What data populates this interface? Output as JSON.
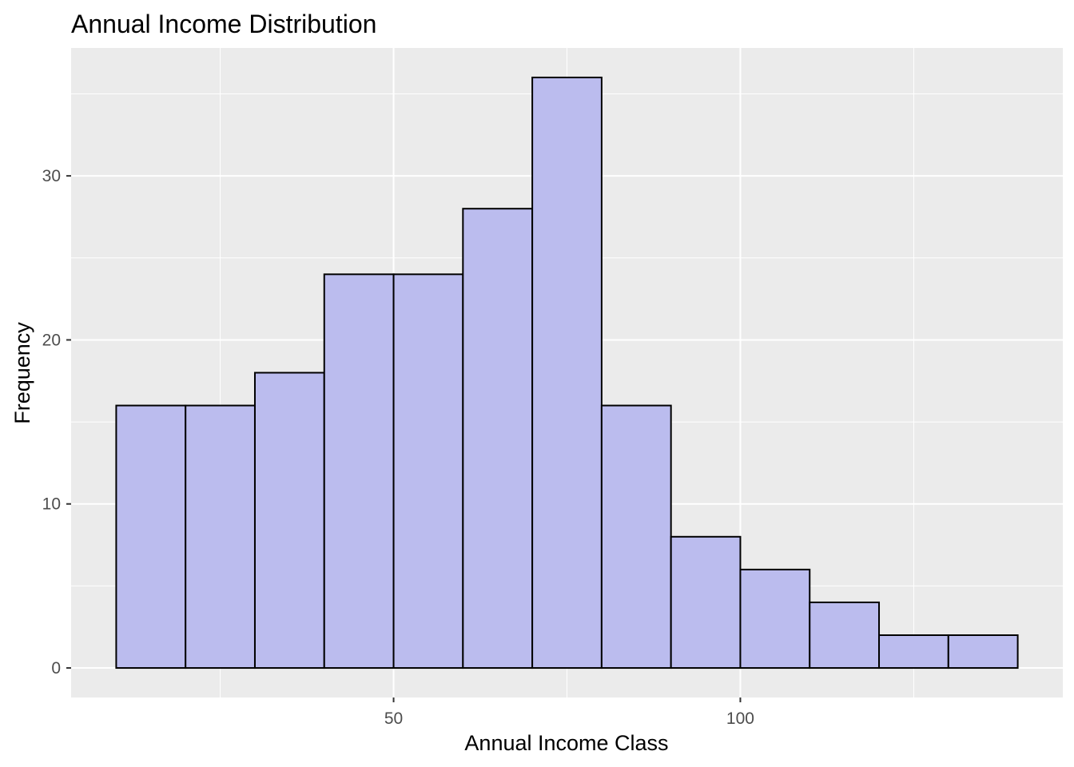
{
  "chart_data": {
    "type": "bar",
    "subtype": "histogram",
    "title": "Annual Income Distribution",
    "xlabel": "Annual Income Class",
    "ylabel": "Frequency",
    "bin_width": 10,
    "bins": [
      {
        "x_start": 10,
        "x_end": 20,
        "count": 16
      },
      {
        "x_start": 20,
        "x_end": 30,
        "count": 16
      },
      {
        "x_start": 30,
        "x_end": 40,
        "count": 18
      },
      {
        "x_start": 40,
        "x_end": 50,
        "count": 24
      },
      {
        "x_start": 50,
        "x_end": 60,
        "count": 24
      },
      {
        "x_start": 60,
        "x_end": 70,
        "count": 28
      },
      {
        "x_start": 70,
        "x_end": 80,
        "count": 36
      },
      {
        "x_start": 80,
        "x_end": 90,
        "count": 16
      },
      {
        "x_start": 90,
        "x_end": 100,
        "count": 8
      },
      {
        "x_start": 100,
        "x_end": 110,
        "count": 6
      },
      {
        "x_start": 110,
        "x_end": 120,
        "count": 4
      },
      {
        "x_start": 120,
        "x_end": 130,
        "count": 2
      },
      {
        "x_start": 130,
        "x_end": 140,
        "count": 2
      }
    ],
    "xlim": [
      3.5,
      146.5
    ],
    "ylim": [
      -1.8,
      37.8
    ],
    "x_ticks": [
      50,
      100
    ],
    "x_minor_ticks": [
      25,
      75,
      125
    ],
    "y_ticks": [
      0,
      10,
      20,
      30
    ],
    "y_minor_ticks": [
      5,
      15,
      25,
      35
    ],
    "grid": true,
    "legend": "none",
    "colors": {
      "bar_fill": "#bbbcee",
      "bar_stroke": "#000000",
      "panel_background": "#ebebeb",
      "grid_line": "#ffffff",
      "tick_label": "#4d4d4d"
    }
  }
}
